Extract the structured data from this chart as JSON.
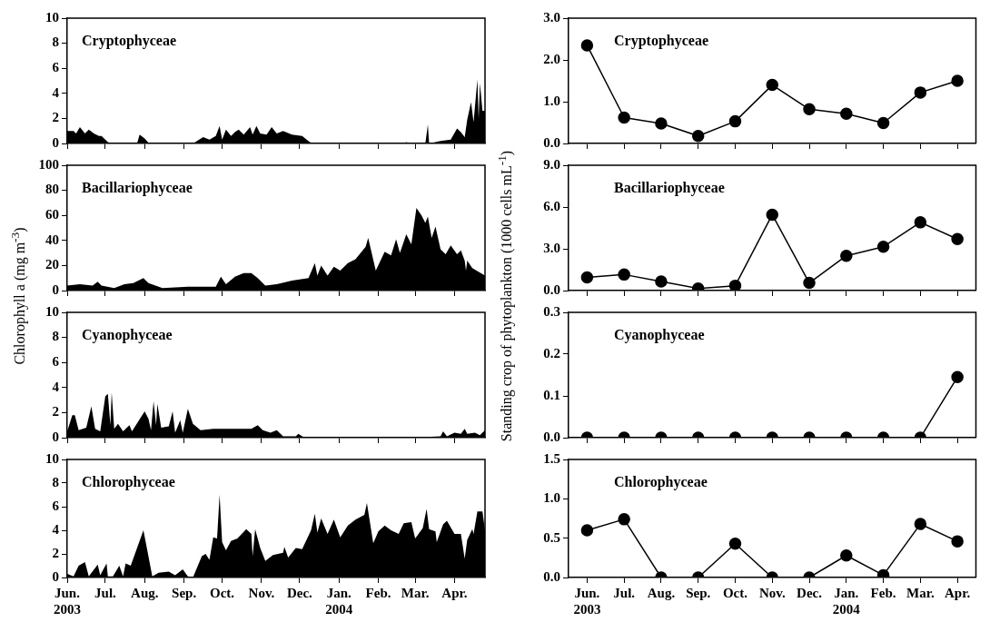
{
  "chart_data": [
    {
      "type": "area",
      "title": "Cryptophyceae",
      "color": "#000000",
      "xlim": [
        "2003-06-01",
        "2004-04-25"
      ],
      "ylim": [
        0,
        10
      ],
      "yticks": [
        0,
        2,
        4,
        6,
        8,
        10
      ],
      "tick_labels": "y",
      "xticks": [
        {
          "value": "2003-06-01",
          "label": null
        },
        {
          "value": "2003-07-01",
          "label": null
        },
        {
          "value": "2003-08-01",
          "label": null
        },
        {
          "value": "2003-09-01",
          "label": null
        },
        {
          "value": "2003-10-01",
          "label": null
        },
        {
          "value": "2003-11-01",
          "label": null
        },
        {
          "value": "2003-12-01",
          "label": null
        },
        {
          "value": "2004-01-01",
          "label": null
        },
        {
          "value": "2004-02-01",
          "label": null
        },
        {
          "value": "2004-03-01",
          "label": null
        },
        {
          "value": "2004-04-01",
          "label": null
        }
      ],
      "x": [
        "2003-06-01",
        "2003-06-06",
        "2003-06-08",
        "2003-06-11",
        "2003-06-15",
        "2003-06-18",
        "2003-06-22",
        "2003-06-26",
        "2003-06-28",
        "2003-07-01",
        "2003-07-03",
        "2003-07-06",
        "2003-07-26",
        "2003-07-28",
        "2003-08-01",
        "2003-08-04",
        "2003-09-09",
        "2003-09-16",
        "2003-09-21",
        "2003-09-26",
        "2003-09-29",
        "2003-10-01",
        "2003-10-04",
        "2003-10-08",
        "2003-10-11",
        "2003-10-14",
        "2003-10-18",
        "2003-10-23",
        "2003-10-25",
        "2003-10-28",
        "2003-10-31",
        "2003-11-05",
        "2003-11-09",
        "2003-11-13",
        "2003-11-18",
        "2003-11-25",
        "2003-12-03",
        "2003-12-09",
        "2003-12-13",
        "2004-02-21",
        "2004-02-23",
        "2004-02-26",
        "2004-03-09",
        "2004-03-11",
        "2004-03-12",
        "2004-03-21",
        "2004-03-29",
        "2004-04-03",
        "2004-04-06",
        "2004-04-09",
        "2004-04-11",
        "2004-04-14",
        "2004-04-16",
        "2004-04-19",
        "2004-04-20",
        "2004-04-21",
        "2004-04-23",
        "2004-04-25"
      ],
      "values": [
        1.0,
        1.0,
        0.8,
        1.3,
        0.8,
        1.1,
        0.8,
        0.6,
        0.6,
        0.3,
        0.1,
        0.0,
        0.0,
        0.7,
        0.4,
        0.05,
        0.05,
        0.5,
        0.3,
        0.6,
        1.4,
        0.3,
        1.1,
        0.6,
        0.9,
        1.1,
        0.7,
        1.3,
        0.7,
        1.4,
        0.8,
        0.7,
        1.3,
        0.8,
        1.0,
        0.7,
        0.6,
        0.1,
        0.0,
        0.0,
        0.1,
        0.0,
        0.0,
        1.5,
        0.0,
        0.2,
        0.3,
        1.2,
        0.9,
        0.5,
        1.9,
        3.3,
        1.7,
        5.1,
        2.0,
        4.8,
        2.6,
        2.6
      ]
    },
    {
      "type": "area",
      "title": "Bacillariophyceae",
      "ylabel": "Chlorophyll a (mg m$^{-3}$)",
      "color": "#000000",
      "xlim": [
        "2003-06-01",
        "2004-04-25"
      ],
      "ylim": [
        0,
        100
      ],
      "yticks": [
        0,
        20,
        40,
        60,
        80,
        100
      ],
      "tick_labels": "y",
      "xticks": [
        {
          "value": "2003-06-01",
          "label": null
        },
        {
          "value": "2003-07-01",
          "label": null
        },
        {
          "value": "2003-08-01",
          "label": null
        },
        {
          "value": "2003-09-01",
          "label": null
        },
        {
          "value": "2003-10-01",
          "label": null
        },
        {
          "value": "2003-11-01",
          "label": null
        },
        {
          "value": "2003-12-01",
          "label": null
        },
        {
          "value": "2004-01-01",
          "label": null
        },
        {
          "value": "2004-02-01",
          "label": null
        },
        {
          "value": "2004-03-01",
          "label": null
        },
        {
          "value": "2004-04-01",
          "label": null
        }
      ],
      "x": [
        "2003-06-01",
        "2003-06-11",
        "2003-06-21",
        "2003-06-25",
        "2003-06-28",
        "2003-07-08",
        "2003-07-16",
        "2003-07-23",
        "2003-07-31",
        "2003-08-04",
        "2003-08-15",
        "2003-09-04",
        "2003-09-26",
        "2003-09-30",
        "2003-10-04",
        "2003-10-11",
        "2003-10-18",
        "2003-10-24",
        "2003-10-29",
        "2003-11-04",
        "2003-11-13",
        "2003-11-25",
        "2003-12-08",
        "2003-12-13",
        "2003-12-15",
        "2003-12-18",
        "2003-12-23",
        "2003-12-28",
        "2004-01-02",
        "2004-01-08",
        "2004-01-14",
        "2004-01-22",
        "2004-01-24",
        "2004-01-30",
        "2004-02-06",
        "2004-02-11",
        "2004-02-15",
        "2004-02-18",
        "2004-02-23",
        "2004-02-27",
        "2004-03-02",
        "2004-03-06",
        "2004-03-09",
        "2004-03-11",
        "2004-03-14",
        "2004-03-17",
        "2004-03-21",
        "2004-03-25",
        "2004-03-29",
        "2004-04-03",
        "2004-04-06",
        "2004-04-09",
        "2004-04-10",
        "2004-04-11",
        "2004-04-15",
        "2004-04-25"
      ],
      "values": [
        4,
        5,
        4,
        7,
        4,
        2,
        5,
        6,
        10,
        6,
        2,
        3,
        3,
        11,
        5,
        11,
        14,
        14,
        10,
        4,
        5,
        8,
        10,
        22,
        12,
        20,
        12,
        19,
        16,
        22,
        25,
        35,
        42,
        16,
        31,
        28,
        41,
        30,
        45,
        37,
        66,
        60,
        54,
        59,
        42,
        51,
        33,
        29,
        36,
        29,
        32,
        24,
        16,
        24,
        18,
        12
      ]
    },
    {
      "type": "area",
      "title": "Cyanophyceae",
      "color": "#000000",
      "xlim": [
        "2003-06-01",
        "2004-04-25"
      ],
      "ylim": [
        0,
        10
      ],
      "yticks": [
        0,
        2,
        4,
        6,
        8,
        10
      ],
      "tick_labels": "y",
      "xticks": [
        {
          "value": "2003-06-01",
          "label": null
        },
        {
          "value": "2003-07-01",
          "label": null
        },
        {
          "value": "2003-08-01",
          "label": null
        },
        {
          "value": "2003-09-01",
          "label": null
        },
        {
          "value": "2003-10-01",
          "label": null
        },
        {
          "value": "2003-11-01",
          "label": null
        },
        {
          "value": "2003-12-01",
          "label": null
        },
        {
          "value": "2004-01-01",
          "label": null
        },
        {
          "value": "2004-02-01",
          "label": null
        },
        {
          "value": "2004-03-01",
          "label": null
        },
        {
          "value": "2004-04-01",
          "label": null
        }
      ],
      "x": [
        "2003-06-01",
        "2003-06-05",
        "2003-06-07",
        "2003-06-10",
        "2003-06-16",
        "2003-06-20",
        "2003-06-23",
        "2003-06-27",
        "2003-07-01",
        "2003-07-03",
        "2003-07-05",
        "2003-07-06",
        "2003-07-08",
        "2003-07-11",
        "2003-07-15",
        "2003-07-20",
        "2003-07-22",
        "2003-07-27",
        "2003-08-01",
        "2003-08-04",
        "2003-08-06",
        "2003-08-08",
        "2003-08-10",
        "2003-08-11",
        "2003-08-14",
        "2003-08-20",
        "2003-08-23",
        "2003-08-25",
        "2003-08-29",
        "2003-08-31",
        "2003-09-04",
        "2003-09-08",
        "2003-09-14",
        "2003-09-24",
        "2003-10-11",
        "2003-10-24",
        "2003-10-29",
        "2003-11-02",
        "2003-11-08",
        "2003-11-13",
        "2003-11-18",
        "2003-11-28",
        "2003-11-30",
        "2003-12-04",
        "2003-12-13",
        "2004-03-09",
        "2004-03-21",
        "2004-03-23",
        "2004-03-26",
        "2004-04-01",
        "2004-04-06",
        "2004-04-09",
        "2004-04-11",
        "2004-04-17",
        "2004-04-21",
        "2004-04-25"
      ],
      "values": [
        0.5,
        1.8,
        1.8,
        0.6,
        0.8,
        2.5,
        0.7,
        0.5,
        3.3,
        3.5,
        1.0,
        3.6,
        0.7,
        1.1,
        0.5,
        1.0,
        0.5,
        1.3,
        2.1,
        1.5,
        0.6,
        2.9,
        1.0,
        2.7,
        0.8,
        0.9,
        2.1,
        0.4,
        1.4,
        0.4,
        2.3,
        1.1,
        0.6,
        0.7,
        0.7,
        0.7,
        1.0,
        0.6,
        0.4,
        0.6,
        0.1,
        0.1,
        0.3,
        0.05,
        0.0,
        0.05,
        0.1,
        0.5,
        0.1,
        0.4,
        0.3,
        0.7,
        0.3,
        0.4,
        0.2,
        0.6
      ]
    },
    {
      "type": "area",
      "title": "Chlorophyceae",
      "color": "#000000",
      "xlim": [
        "2003-06-01",
        "2004-04-25"
      ],
      "ylim": [
        0,
        10
      ],
      "yticks": [
        0,
        2,
        4,
        6,
        8,
        10
      ],
      "xticks": [
        {
          "value": "2003-06-01",
          "label": "Jun.\n2003"
        },
        {
          "value": "2003-07-01",
          "label": "Jul."
        },
        {
          "value": "2003-08-01",
          "label": "Aug."
        },
        {
          "value": "2003-09-01",
          "label": "Sep."
        },
        {
          "value": "2003-10-01",
          "label": "Oct."
        },
        {
          "value": "2003-11-01",
          "label": "Nov."
        },
        {
          "value": "2003-12-01",
          "label": "Dec."
        },
        {
          "value": "2004-01-01",
          "label": "Jan.\n2004"
        },
        {
          "value": "2004-02-01",
          "label": "Feb."
        },
        {
          "value": "2004-03-01",
          "label": "Mar."
        },
        {
          "value": "2004-04-01",
          "label": "Apr."
        }
      ],
      "x": [
        "2003-06-01",
        "2003-06-06",
        "2003-06-10",
        "2003-06-15",
        "2003-06-18",
        "2003-06-25",
        "2003-06-27",
        "2003-07-02",
        "2003-07-03",
        "2003-07-07",
        "2003-07-12",
        "2003-07-15",
        "2003-07-17",
        "2003-07-21",
        "2003-07-26",
        "2003-07-31",
        "2003-08-02",
        "2003-08-07",
        "2003-08-12",
        "2003-08-20",
        "2003-08-25",
        "2003-08-31",
        "2003-09-04",
        "2003-09-08",
        "2003-09-15",
        "2003-09-18",
        "2003-09-21",
        "2003-09-24",
        "2003-09-27",
        "2003-09-29",
        "2003-10-01",
        "2003-10-04",
        "2003-10-08",
        "2003-10-13",
        "2003-10-20",
        "2003-10-24",
        "2003-10-25",
        "2003-10-27",
        "2003-10-31",
        "2003-11-04",
        "2003-11-10",
        "2003-11-18",
        "2003-11-19",
        "2003-11-22",
        "2003-11-28",
        "2003-12-03",
        "2003-12-10",
        "2003-12-13",
        "2003-12-15",
        "2003-12-18",
        "2003-12-23",
        "2003-12-28",
        "2004-01-02",
        "2004-01-08",
        "2004-01-14",
        "2004-01-21",
        "2004-01-23",
        "2004-01-28",
        "2004-02-01",
        "2004-02-06",
        "2004-02-11",
        "2004-02-17",
        "2004-02-21",
        "2004-02-27",
        "2004-03-01",
        "2004-03-07",
        "2004-03-10",
        "2004-03-12",
        "2004-03-17",
        "2004-03-18",
        "2004-03-23",
        "2004-03-26",
        "2004-04-01",
        "2004-04-06",
        "2004-04-09",
        "2004-04-11",
        "2004-04-15",
        "2004-04-16",
        "2004-04-19",
        "2004-04-23",
        "2004-04-25"
      ],
      "values": [
        0.3,
        0.1,
        1.0,
        1.3,
        0.1,
        1.1,
        0.2,
        1.2,
        0.1,
        0.1,
        1.0,
        0.1,
        1.2,
        1.0,
        2.5,
        4.0,
        2.9,
        0.1,
        0.4,
        0.5,
        0.2,
        0.7,
        0.1,
        0.0,
        1.8,
        2.0,
        1.5,
        3.4,
        3.3,
        7.0,
        3.0,
        2.3,
        3.1,
        3.3,
        4.1,
        3.7,
        1.8,
        4.1,
        2.5,
        1.4,
        1.9,
        2.1,
        2.6,
        1.7,
        2.5,
        2.4,
        4.0,
        5.4,
        3.8,
        5.0,
        3.7,
        4.9,
        3.4,
        4.4,
        4.9,
        5.3,
        6.3,
        2.9,
        3.9,
        4.4,
        4.0,
        3.7,
        4.6,
        4.7,
        3.3,
        4.2,
        5.8,
        4.1,
        3.9,
        3.0,
        4.5,
        4.8,
        3.7,
        3.7,
        1.6,
        3.2,
        4.1,
        3.7,
        5.6,
        5.6,
        4.0
      ]
    },
    {
      "type": "line",
      "title": "Cryptophyceae",
      "color": "#000000",
      "marker": "circle",
      "tick_labels": "y",
      "categories": [
        null,
        null,
        null,
        null,
        null,
        null,
        null,
        null,
        null,
        null,
        null
      ],
      "ylim": [
        0,
        3
      ],
      "yticks": [
        {
          "value": 0,
          "label": "0.0"
        },
        {
          "value": 1,
          "label": "1.0"
        },
        {
          "value": 2,
          "label": "2.0"
        },
        {
          "value": 3,
          "label": "3.0"
        }
      ],
      "values": [
        2.35,
        0.62,
        0.48,
        0.18,
        0.53,
        1.4,
        0.82,
        0.71,
        0.49,
        1.22,
        1.5
      ]
    },
    {
      "type": "line",
      "title": "Bacillariophyceae",
      "ylabel": "Standing crop of phytoplankton (1000 cells mL$^{-1}$)",
      "color": "#000000",
      "marker": "circle",
      "tick_labels": "y",
      "categories": [
        null,
        null,
        null,
        null,
        null,
        null,
        null,
        null,
        null,
        null,
        null
      ],
      "ylim": [
        0,
        9
      ],
      "yticks": [
        {
          "value": 0,
          "label": "0.0"
        },
        {
          "value": 3,
          "label": "3.0"
        },
        {
          "value": 6,
          "label": "6.0"
        },
        {
          "value": 9,
          "label": "9.0"
        }
      ],
      "values": [
        0.95,
        1.15,
        0.65,
        0.15,
        0.35,
        5.45,
        0.55,
        2.5,
        3.15,
        4.9,
        3.7
      ]
    },
    {
      "type": "line",
      "title": "Cyanophyceae",
      "color": "#000000",
      "marker": "circle",
      "tick_labels": "y",
      "categories": [
        null,
        null,
        null,
        null,
        null,
        null,
        null,
        null,
        null,
        null,
        null
      ],
      "ylim": [
        0,
        0.3
      ],
      "yticks": [
        {
          "value": 0,
          "label": "0.0"
        },
        0.1,
        0.2,
        0.3
      ],
      "values": [
        0,
        0,
        0,
        0,
        0,
        0,
        0,
        0,
        0,
        0,
        0.145
      ]
    },
    {
      "type": "line",
      "title": "Chlorophyceae",
      "color": "#000000",
      "marker": "circle",
      "categories": [
        "Jun.\n2003",
        "Jul.",
        "Aug.",
        "Sep.",
        "Oct.",
        "Nov.",
        "Dec.",
        "Jan.\n2004",
        "Feb.",
        "Mar.",
        "Apr."
      ],
      "ylim": [
        0,
        1.5
      ],
      "yticks": [
        {
          "value": 0,
          "label": "0.0"
        },
        0.5,
        {
          "value": 1,
          "label": "1.0"
        },
        1.5
      ],
      "values": [
        0.6,
        0.74,
        0,
        0,
        0.43,
        0,
        0,
        0.28,
        0.03,
        0.68,
        0.46
      ]
    }
  ]
}
